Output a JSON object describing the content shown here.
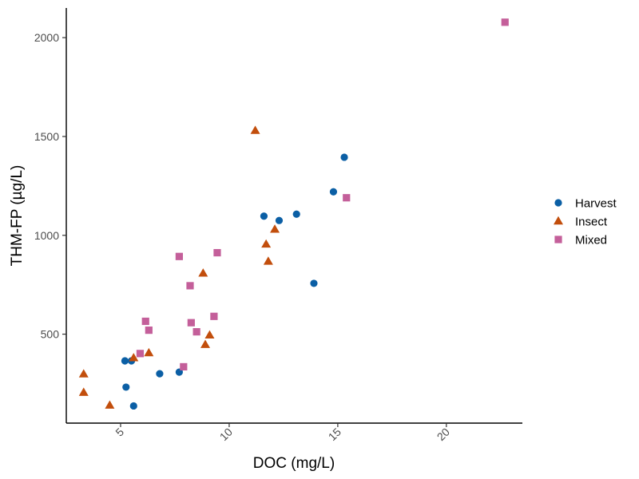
{
  "chart_data": {
    "type": "scatter",
    "xlabel": "DOC (mg/L)",
    "ylabel": "THM-FP (µg/L)",
    "xlim": [
      2.5,
      23.5
    ],
    "ylim": [
      50,
      2150
    ],
    "x_ticks": [
      5,
      10,
      15,
      20
    ],
    "y_ticks": [
      500,
      1000,
      1500,
      2000
    ],
    "grid": false,
    "legend_position": "right",
    "series": [
      {
        "name": "Harvest",
        "marker": "circle",
        "color": "#0b5fa5",
        "points": [
          {
            "x": 5.2,
            "y": 365
          },
          {
            "x": 5.5,
            "y": 365
          },
          {
            "x": 5.25,
            "y": 232
          },
          {
            "x": 5.6,
            "y": 137
          },
          {
            "x": 6.8,
            "y": 300
          },
          {
            "x": 7.7,
            "y": 308
          },
          {
            "x": 11.6,
            "y": 1097
          },
          {
            "x": 12.3,
            "y": 1075
          },
          {
            "x": 13.1,
            "y": 1107
          },
          {
            "x": 13.9,
            "y": 757
          },
          {
            "x": 14.8,
            "y": 1220
          },
          {
            "x": 15.3,
            "y": 1395
          }
        ]
      },
      {
        "name": "Insect",
        "marker": "triangle",
        "color": "#c24e0c",
        "points": [
          {
            "x": 3.3,
            "y": 298
          },
          {
            "x": 3.3,
            "y": 205
          },
          {
            "x": 4.5,
            "y": 140
          },
          {
            "x": 5.6,
            "y": 380
          },
          {
            "x": 6.3,
            "y": 405
          },
          {
            "x": 8.8,
            "y": 808
          },
          {
            "x": 8.9,
            "y": 447
          },
          {
            "x": 9.1,
            "y": 495
          },
          {
            "x": 11.2,
            "y": 1530
          },
          {
            "x": 11.7,
            "y": 955
          },
          {
            "x": 11.8,
            "y": 868
          },
          {
            "x": 12.1,
            "y": 1030
          }
        ]
      },
      {
        "name": "Mixed",
        "marker": "square",
        "color": "#c45f9a",
        "points": [
          {
            "x": 5.9,
            "y": 402
          },
          {
            "x": 6.15,
            "y": 565
          },
          {
            "x": 6.3,
            "y": 520
          },
          {
            "x": 7.7,
            "y": 893
          },
          {
            "x": 7.9,
            "y": 335
          },
          {
            "x": 8.2,
            "y": 745
          },
          {
            "x": 8.25,
            "y": 558
          },
          {
            "x": 8.5,
            "y": 512
          },
          {
            "x": 9.3,
            "y": 590
          },
          {
            "x": 9.45,
            "y": 912
          },
          {
            "x": 15.4,
            "y": 1190
          },
          {
            "x": 22.7,
            "y": 2078
          }
        ]
      }
    ]
  }
}
